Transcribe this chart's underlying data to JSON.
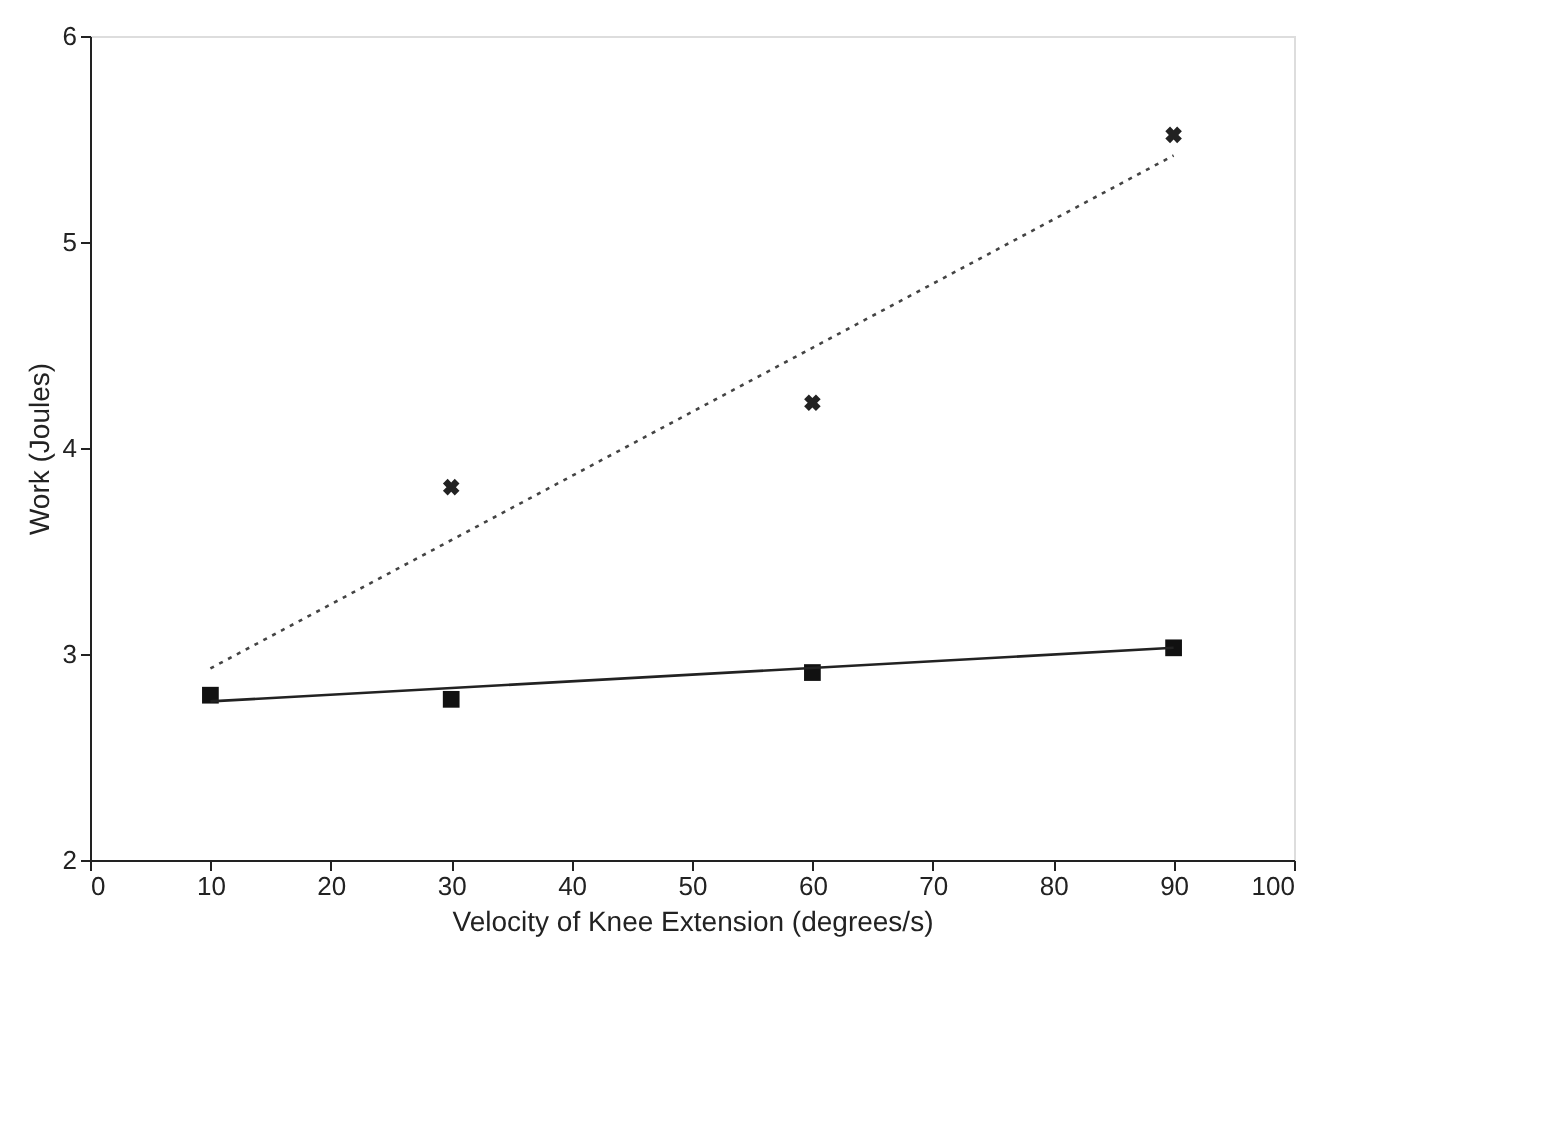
{
  "chart_data": {
    "type": "scatter",
    "xlabel": "Velocity of Knee Extension (degrees/s)",
    "ylabel": "Work (Joules)",
    "xlim": [
      0,
      100
    ],
    "xticks": [
      0,
      10,
      20,
      30,
      40,
      50,
      60,
      70,
      80,
      90,
      100
    ],
    "ylim": [
      2,
      6
    ],
    "yticks": [
      2,
      3,
      4,
      5,
      6
    ],
    "grid": false,
    "series": [
      {
        "marker": "cross",
        "color": "#222222",
        "x": [
          30,
          60,
          90
        ],
        "values": [
          3.81,
          4.22,
          5.52
        ]
      },
      {
        "marker": "square",
        "color": "#111111",
        "x": [
          10,
          30,
          60,
          90
        ],
        "values": [
          2.8,
          2.78,
          2.91,
          3.03
        ]
      },
      {
        "type": "line",
        "marker": "none",
        "line_style": "dotted",
        "color": "#444444",
        "x": [
          10,
          90
        ],
        "values": [
          2.93,
          5.42
        ]
      },
      {
        "type": "line",
        "marker": "none",
        "line_style": "solid",
        "color": "#222222",
        "x": [
          10,
          90
        ],
        "values": [
          2.77,
          3.03
        ]
      }
    ]
  }
}
